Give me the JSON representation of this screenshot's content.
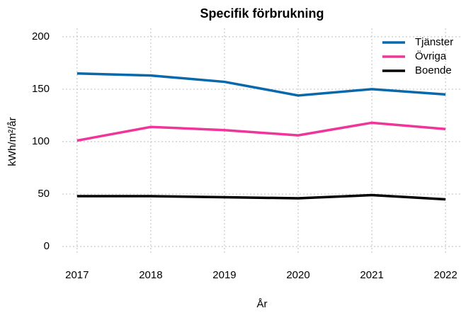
{
  "chart_data": {
    "type": "line",
    "title": "Specifik förbrukning",
    "x_label": "År",
    "y_label": "kWh/m²/år",
    "x": [
      2017,
      2018,
      2019,
      2020,
      2021,
      2022
    ],
    "series": [
      {
        "name": "Tjänster",
        "color": "#0868ac",
        "values": [
          165,
          163,
          157,
          144,
          150,
          145
        ]
      },
      {
        "name": "Övriga",
        "color": "#f0359a",
        "values": [
          101,
          114,
          111,
          106,
          118,
          112
        ]
      },
      {
        "name": "Boende",
        "color": "#000000",
        "values": [
          48,
          48,
          47,
          46,
          49,
          45
        ]
      }
    ],
    "xlim": [
      2016.8,
      2022.2
    ],
    "xticks": [
      2017,
      2018,
      2019,
      2020,
      2021,
      2022
    ],
    "ylim": [
      -8,
      208
    ],
    "yticks": [
      0,
      50,
      100,
      150,
      200
    ],
    "grid": true,
    "legend": "top-right"
  }
}
